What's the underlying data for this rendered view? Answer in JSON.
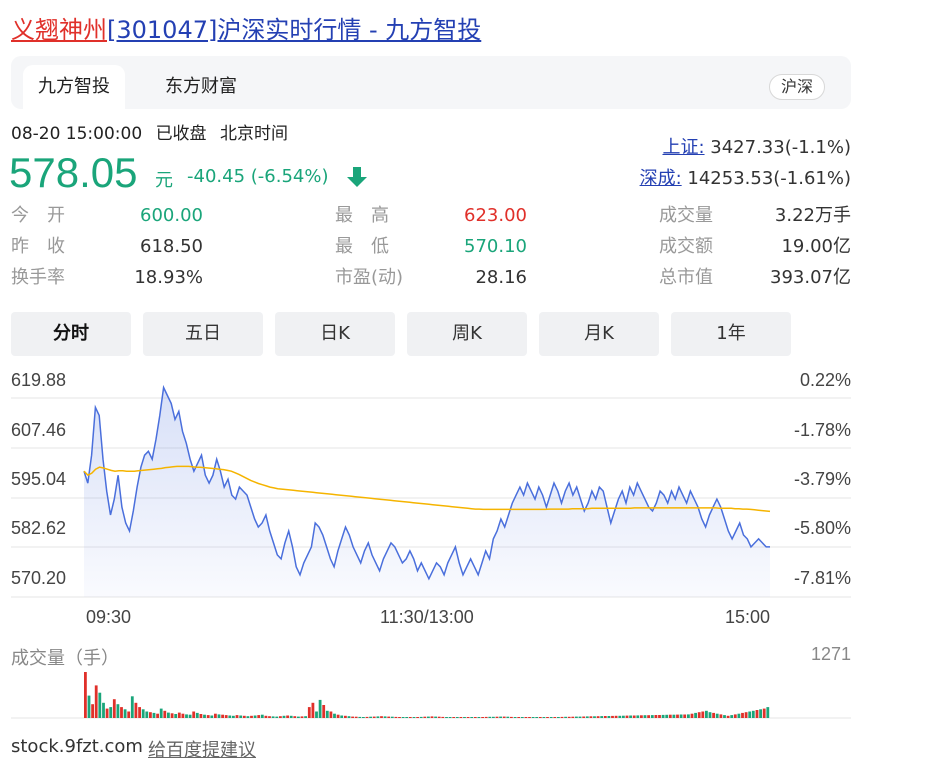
{
  "header": {
    "title_stock_name": "义翘神州",
    "title_rest": "[301047]沪深实时行情 - 九方智投"
  },
  "tabs": [
    {
      "label": "九方智投",
      "active": true
    },
    {
      "label": "东方财富",
      "active": false
    }
  ],
  "market_badge": "沪深",
  "quote": {
    "datetime": "08-20 15:00:00",
    "status": "已收盘",
    "timezone": "北京时间",
    "price": "578.05",
    "unit": "元",
    "change": "-40.45 (-6.54%)",
    "direction": "down"
  },
  "indices": [
    {
      "label": "上证:",
      "value": "3427.33(-1.1%)"
    },
    {
      "label": "深成:",
      "value": "14253.53(-1.61%)"
    }
  ],
  "stats": {
    "open_label": "今　开",
    "open": "600.00",
    "prev_close_label": "昨　收",
    "prev_close": "618.50",
    "turnover_rate_label": "换手率",
    "turnover_rate": "18.93%",
    "high_label": "最　高",
    "high": "623.00",
    "low_label": "最　低",
    "low": "570.10",
    "pe_label": "市盈(动)",
    "pe": "28.16",
    "volume_label": "成交量",
    "volume": "3.22万手",
    "amount_label": "成交额",
    "amount": "19.00亿",
    "mktcap_label": "总市值",
    "mktcap": "393.07亿"
  },
  "periods": [
    "分时",
    "五日",
    "日K",
    "周K",
    "月K",
    "1年"
  ],
  "active_period": "分时",
  "colors": {
    "up": "#e0302a",
    "down": "#1aa57a",
    "price_line": "#4a6fdc",
    "avg_line": "#f5b400",
    "link": "#2440b3"
  },
  "chart_data": {
    "type": "line",
    "y_ticks_left": [
      "619.88",
      "607.46",
      "595.04",
      "582.62",
      "570.20"
    ],
    "y_ticks_right": [
      "0.22%",
      "-1.78%",
      "-3.79%",
      "-5.80%",
      "-7.81%"
    ],
    "x_ticks": [
      "09:30",
      "11:30/13:00",
      "15:00"
    ],
    "ylim": [
      570.2,
      619.88
    ],
    "x_total_minutes": 240,
    "series": [
      {
        "values": [
          597,
          594,
          601,
          613,
          611,
          600,
          592,
          586,
          590,
          596,
          588,
          584,
          582,
          587,
          593,
          598,
          601,
          602,
          600,
          605,
          611,
          618,
          616,
          614,
          610,
          612,
          607,
          604,
          600,
          597,
          599,
          601,
          596,
          594,
          596,
          600,
          597,
          593,
          595,
          591,
          590,
          593,
          592,
          591,
          588,
          585,
          583,
          584,
          586,
          582,
          579,
          576,
          575,
          579,
          582,
          578,
          573,
          571,
          574,
          576,
          578,
          584,
          583,
          581,
          578,
          575,
          573,
          577,
          580,
          583,
          581,
          578,
          576,
          574,
          577,
          579,
          576,
          574,
          572,
          575,
          577,
          579,
          578,
          576,
          574,
          575,
          577,
          575,
          572,
          574,
          572,
          570,
          572,
          574,
          573,
          571,
          574,
          576,
          578,
          574,
          571,
          573,
          575,
          573,
          571,
          574,
          577,
          575,
          580,
          582,
          585,
          583,
          586,
          589,
          591,
          593,
          591,
          594,
          592,
          590,
          593,
          591,
          588,
          591,
          594,
          592,
          589,
          592,
          594,
          591,
          593,
          590,
          587,
          589,
          592,
          590,
          593,
          592,
          588,
          584,
          587,
          590,
          592,
          589,
          593,
          591,
          594,
          592,
          590,
          588,
          587,
          589,
          592,
          591,
          589,
          592,
          590,
          593,
          591,
          589,
          592,
          590,
          588,
          585,
          583,
          586,
          588,
          590,
          588,
          585,
          582,
          580,
          582,
          584,
          581,
          580,
          578,
          579,
          580,
          579,
          578,
          578
        ],
        "color": "#4a6fdc"
      },
      {
        "values": [
          597,
          596,
          596.5,
          597.5,
          598,
          597.8,
          597.5,
          597.2,
          597.0,
          597.1,
          597.1,
          597.0,
          597.0,
          597.0,
          597.1,
          597.2,
          597.3,
          597.4,
          597.5,
          597.6,
          597.7,
          597.9,
          598.0,
          598.1,
          598.2,
          598.2,
          598.2,
          598.2,
          598.1,
          598.0,
          598.0,
          597.9,
          597.8,
          597.7,
          597.6,
          597.5,
          597.4,
          597.2,
          597.0,
          596.6,
          596.2,
          595.7,
          595.2,
          594.7,
          594.3,
          593.9,
          593.6,
          593.3,
          593.0,
          592.8,
          592.6,
          592.5,
          592.4,
          592.3,
          592.2,
          592.1,
          592.0,
          591.9,
          591.8,
          591.7,
          591.6,
          591.5,
          591.4,
          591.3,
          591.2,
          591.1,
          591.0,
          590.9,
          590.8,
          590.7,
          590.6,
          590.5,
          590.4,
          590.3,
          590.2,
          590.1,
          590.0,
          589.9,
          589.8,
          589.7,
          589.6,
          589.5,
          589.4,
          589.3,
          589.2,
          589.1,
          589.0,
          588.9,
          588.8,
          588.7,
          588.6,
          588.5,
          588.4,
          588.3,
          588.2,
          588.1,
          588.0,
          587.9,
          587.8,
          587.7,
          587.6,
          587.5,
          587.5,
          587.4,
          587.4,
          587.4,
          587.4,
          587.4,
          587.4,
          587.4,
          587.4,
          587.4,
          587.4,
          587.4,
          587.4,
          587.4,
          587.4,
          587.4,
          587.4,
          587.4,
          587.5,
          587.5,
          587.5,
          587.5,
          587.5,
          587.5,
          587.6,
          587.6,
          587.6,
          587.6,
          587.6,
          587.7,
          587.7,
          587.7,
          587.7,
          587.7,
          587.7,
          587.7,
          587.7,
          587.7,
          587.7,
          587.7,
          587.8,
          587.8,
          587.8,
          587.8,
          587.8,
          587.8,
          587.8,
          587.8,
          587.8,
          587.8,
          587.8,
          587.8,
          587.8,
          587.8,
          587.8,
          587.8,
          587.8,
          587.8,
          587.8,
          587.8,
          587.8,
          587.8,
          587.7,
          587.7,
          587.7,
          587.7,
          587.6,
          587.6,
          587.5,
          587.5,
          587.4,
          587.3,
          587.2,
          587.1,
          587.0,
          586.9
        ],
        "color": "#f5b400"
      }
    ]
  },
  "volume": {
    "title": "成交量（手）",
    "max_label": "1271",
    "max": 1271,
    "bars": [
      1271,
      620,
      380,
      900,
      700,
      420,
      260,
      300,
      520,
      380,
      300,
      240,
      180,
      600,
      420,
      300,
      240,
      180,
      160,
      140,
      120,
      260,
      200,
      150,
      130,
      110,
      150,
      120,
      100,
      90,
      180,
      140,
      110,
      90,
      80,
      70,
      120,
      100,
      90,
      80,
      70,
      60,
      80,
      70,
      60,
      50,
      60,
      70,
      80,
      90,
      60,
      50,
      45,
      40,
      50,
      60,
      70,
      60,
      50,
      40,
      45,
      50,
      300,
      420,
      180,
      500,
      360,
      200,
      180,
      120,
      90,
      70,
      60,
      50,
      40,
      35,
      30,
      25,
      30,
      35,
      40,
      45,
      50,
      45,
      40,
      35,
      30,
      28,
      26,
      24,
      22,
      20,
      25,
      30,
      35,
      40,
      45,
      40,
      35,
      30,
      28,
      26,
      24,
      22,
      20,
      18,
      20,
      22,
      24,
      26,
      28,
      30,
      32,
      34,
      36,
      38,
      40,
      35,
      30,
      25,
      20,
      15,
      10,
      12,
      14,
      16,
      18,
      20,
      22,
      24,
      26,
      28,
      30,
      32,
      34,
      36,
      38,
      40,
      42,
      44,
      46,
      48,
      50,
      52,
      54,
      56,
      58,
      60,
      62,
      64,
      66,
      68,
      70,
      72,
      74,
      76,
      78,
      80,
      82,
      84,
      86,
      88,
      90,
      92,
      94,
      96,
      98,
      100,
      120,
      140,
      160,
      180,
      200,
      160,
      140,
      120,
      100,
      80,
      60,
      80,
      100,
      120,
      140,
      160,
      180,
      200,
      220,
      240,
      260,
      300
    ],
    "bar_colors_pattern": [
      "up",
      "down",
      "up",
      "up",
      "down",
      "down",
      "up",
      "down",
      "up",
      "down",
      "up",
      "down"
    ]
  },
  "footer": {
    "source": "stock.9fzt.com",
    "feedback": "给百度提建议"
  }
}
